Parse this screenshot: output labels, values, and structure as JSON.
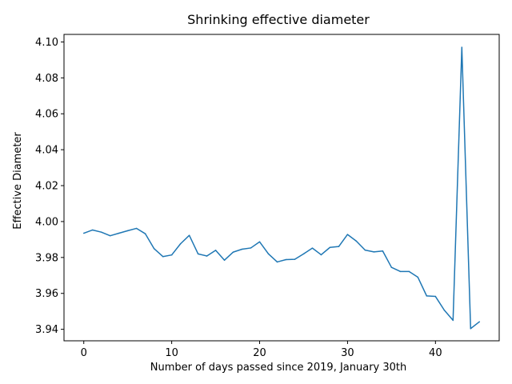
{
  "chart_data": {
    "type": "line",
    "title": "Shrinking effective diameter",
    "xlabel": "Number of days passed since 2019, January 30th",
    "ylabel": "Effective Diameter",
    "xlim": [
      -2.25,
      47.25
    ],
    "ylim": [
      3.9336,
      4.1042
    ],
    "xticks": [
      0,
      10,
      20,
      30,
      40
    ],
    "xtick_labels": [
      "0",
      "10",
      "20",
      "30",
      "40"
    ],
    "yticks": [
      3.94,
      3.96,
      3.98,
      4.0,
      4.02,
      4.04,
      4.06,
      4.08,
      4.1
    ],
    "ytick_labels": [
      "3.94",
      "3.96",
      "3.98",
      "4.00",
      "4.02",
      "4.04",
      "4.06",
      "4.08",
      "4.10"
    ],
    "grid": false,
    "series": [
      {
        "color": "#1f77b4",
        "x": [
          0,
          1,
          2,
          3,
          4,
          5,
          6,
          7,
          8,
          9,
          10,
          11,
          12,
          13,
          14,
          15,
          16,
          17,
          18,
          19,
          20,
          21,
          22,
          23,
          24,
          25,
          26,
          27,
          28,
          29,
          30,
          31,
          32,
          33,
          34,
          35,
          36,
          37,
          38,
          39,
          40,
          41,
          42,
          43,
          44,
          45
        ],
        "y": [
          3.9935,
          3.9953,
          3.9941,
          3.9921,
          3.9935,
          3.9949,
          3.9962,
          3.9932,
          3.9849,
          3.9805,
          3.9814,
          3.9876,
          3.9923,
          3.982,
          3.9808,
          3.984,
          3.9785,
          3.983,
          3.9846,
          3.9853,
          3.9887,
          3.982,
          3.9775,
          3.9788,
          3.979,
          3.982,
          3.9852,
          3.9815,
          3.9856,
          3.9861,
          3.9928,
          3.9891,
          3.9841,
          3.9831,
          3.9836,
          3.9745,
          3.9722,
          3.9722,
          3.969,
          3.9586,
          3.9583,
          3.9507,
          3.945,
          4.097,
          3.9404,
          3.9442
        ]
      }
    ]
  }
}
